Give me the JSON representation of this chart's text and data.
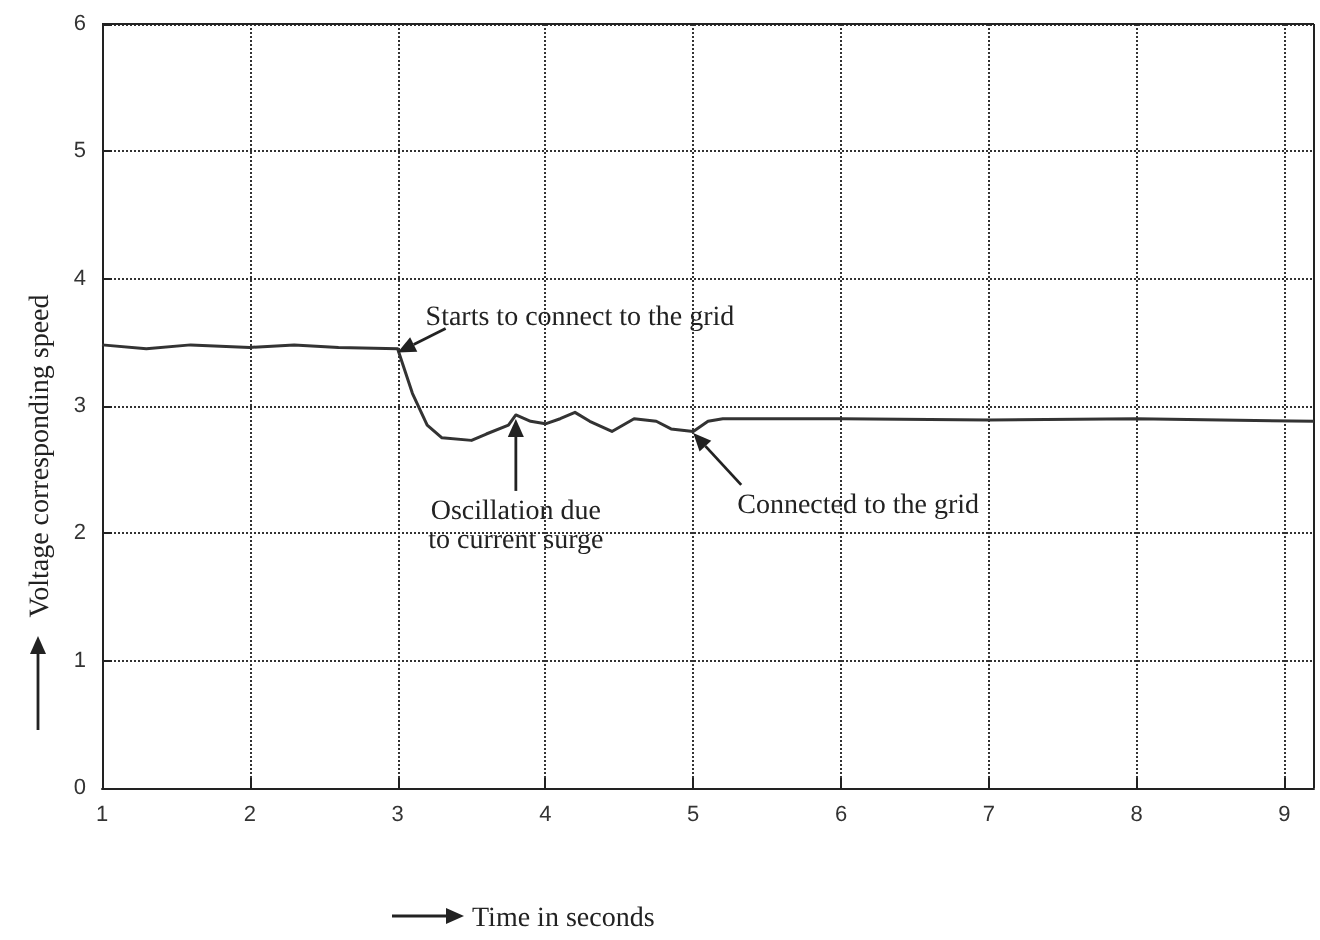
{
  "chart_data": {
    "type": "line",
    "xlabel": "Time in seconds",
    "ylabel": "Voltage corresponding speed",
    "x": [
      1,
      1.3,
      1.6,
      2,
      2.3,
      2.6,
      3,
      3.1,
      3.2,
      3.3,
      3.5,
      3.6,
      3.75,
      3.8,
      3.9,
      4,
      4.1,
      4.2,
      4.3,
      4.45,
      4.6,
      4.75,
      4.85,
      5,
      5.1,
      5.2,
      6,
      7,
      8,
      9.2
    ],
    "series": [
      {
        "color": "#333333",
        "values": [
          3.48,
          3.45,
          3.48,
          3.46,
          3.48,
          3.46,
          3.45,
          3.1,
          2.85,
          2.75,
          2.73,
          2.78,
          2.85,
          2.93,
          2.88,
          2.86,
          2.9,
          2.95,
          2.88,
          2.8,
          2.9,
          2.88,
          2.82,
          2.8,
          2.88,
          2.9,
          2.9,
          2.89,
          2.9,
          2.88
        ]
      }
    ],
    "xlim": [
      1,
      9.2
    ],
    "xticks": [
      1,
      2,
      3,
      4,
      5,
      6,
      7,
      8,
      9
    ],
    "ylim": [
      0,
      6
    ],
    "yticks": [
      0,
      1,
      2,
      3,
      4,
      5,
      6
    ],
    "grid": true,
    "marker": "none",
    "line_style": "solid",
    "annotations": [
      {
        "text": "Starts to connect to the grid",
        "x": 3.0,
        "y": 3.42
      },
      {
        "text": "Oscillation due\nto current surge",
        "x": 3.8,
        "y": 2.93
      },
      {
        "text": "Connected to the grid",
        "x": 5.0,
        "y": 2.82
      }
    ]
  }
}
